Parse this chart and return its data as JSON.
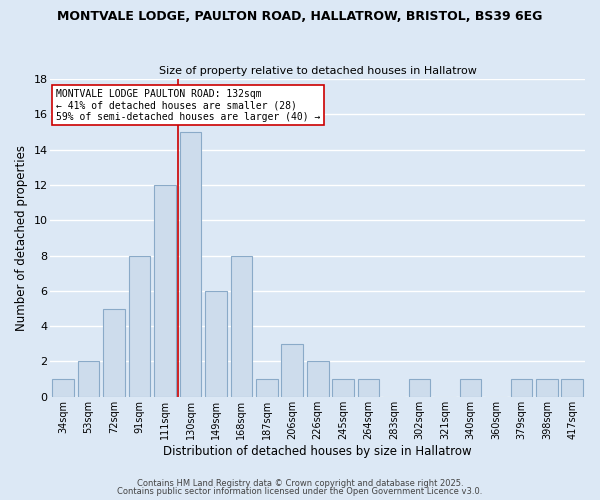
{
  "title1": "MONTVALE LODGE, PAULTON ROAD, HALLATROW, BRISTOL, BS39 6EG",
  "title2": "Size of property relative to detached houses in Hallatrow",
  "xlabel": "Distribution of detached houses by size in Hallatrow",
  "ylabel": "Number of detached properties",
  "bar_color": "#cddcec",
  "bar_edge_color": "#8aaac8",
  "bg_color": "#dce8f5",
  "grid_color": "white",
  "categories": [
    "34sqm",
    "53sqm",
    "72sqm",
    "91sqm",
    "111sqm",
    "130sqm",
    "149sqm",
    "168sqm",
    "187sqm",
    "206sqm",
    "226sqm",
    "245sqm",
    "264sqm",
    "283sqm",
    "302sqm",
    "321sqm",
    "340sqm",
    "360sqm",
    "379sqm",
    "398sqm",
    "417sqm"
  ],
  "values": [
    1,
    2,
    5,
    8,
    12,
    15,
    6,
    8,
    1,
    3,
    2,
    1,
    1,
    0,
    1,
    0,
    1,
    0,
    1,
    1,
    1
  ],
  "ylim": [
    0,
    18
  ],
  "yticks": [
    0,
    2,
    4,
    6,
    8,
    10,
    12,
    14,
    16,
    18
  ],
  "vline_color": "#cc0000",
  "annotation_lines": [
    "MONTVALE LODGE PAULTON ROAD: 132sqm",
    "← 41% of detached houses are smaller (28)",
    "59% of semi-detached houses are larger (40) →"
  ],
  "footer1": "Contains HM Land Registry data © Crown copyright and database right 2025.",
  "footer2": "Contains public sector information licensed under the Open Government Licence v3.0."
}
